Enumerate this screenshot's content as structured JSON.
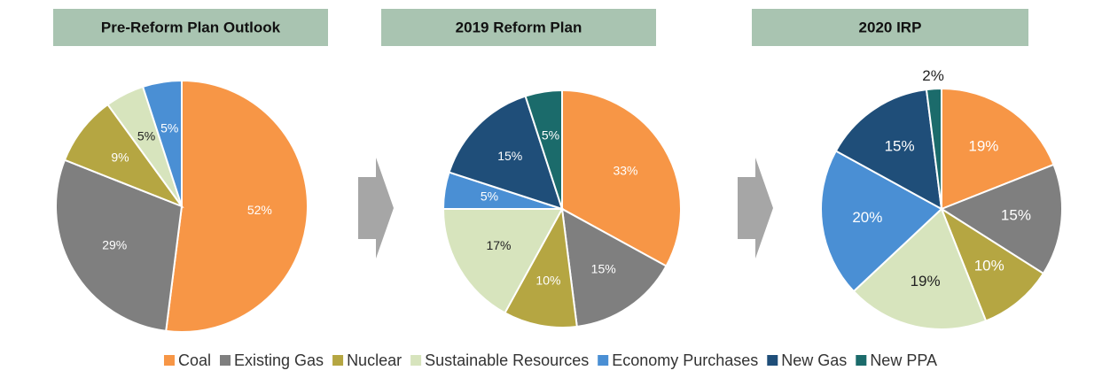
{
  "legend": {
    "labels": [
      "Coal",
      "Existing Gas",
      "Nuclear",
      "Sustainable Resources",
      "Economy Purchases",
      "New Gas",
      "New PPA"
    ],
    "colors": [
      "#f79646",
      "#7f7f7f",
      "#b5a642",
      "#d7e4bd",
      "#4a8fd4",
      "#1f4e79",
      "#1b6b6b"
    ]
  },
  "chart_data": [
    {
      "type": "pie",
      "title": "Pre-Reform Plan Outlook",
      "values": [
        52,
        29,
        9,
        5,
        5,
        null,
        null
      ],
      "value_labels": [
        "52%",
        "29%",
        "9%",
        "5%",
        "5%",
        null,
        null
      ]
    },
    {
      "type": "pie",
      "title": "2019 Reform Plan",
      "values": [
        33,
        15,
        10,
        17,
        5,
        15,
        5
      ],
      "value_labels": [
        "33%",
        "15%",
        "10%",
        "17%",
        "5%",
        "15%",
        "5%"
      ]
    },
    {
      "type": "pie",
      "title": "2020 IRP",
      "values": [
        19,
        15,
        10,
        19,
        20,
        15,
        2
      ],
      "value_labels": [
        "19%",
        "15%",
        "10%",
        "19%",
        "20%",
        "15%",
        "2%"
      ]
    }
  ]
}
